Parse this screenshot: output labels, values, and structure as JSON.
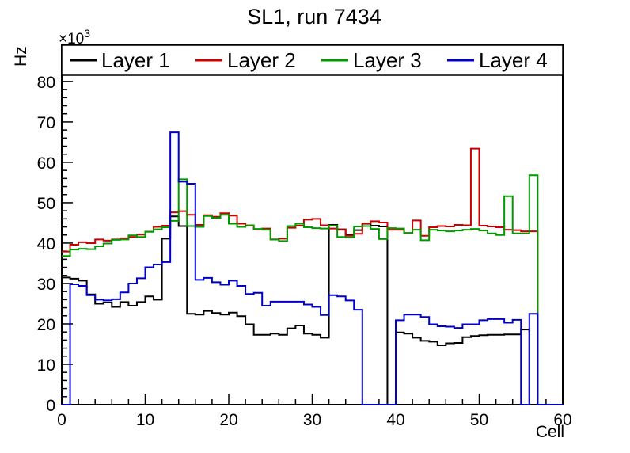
{
  "title": "SL1, run 7434",
  "y_axis": {
    "label": "Hz",
    "power_base": "×10",
    "power_exp": "3",
    "tick_labels": [
      "0",
      "10",
      "20",
      "30",
      "40",
      "50",
      "60",
      "70",
      "80"
    ]
  },
  "x_axis": {
    "label": "Cell",
    "tick_labels": [
      "0",
      "10",
      "20",
      "30",
      "40",
      "50",
      "60"
    ]
  },
  "legend": {
    "entries": [
      {
        "label": "Layer 1",
        "color": "#000000"
      },
      {
        "label": "Layer 2",
        "color": "#cc0000"
      },
      {
        "label": "Layer 3",
        "color": "#009900"
      },
      {
        "label": "Layer 4",
        "color": "#0000cc"
      }
    ]
  },
  "chart_data": {
    "type": "step-histogram",
    "title": "SL1, run 7434",
    "xlabel": "Cell",
    "ylabel": "Hz",
    "y_unit": "kHz (axis shows ×10³ Hz)",
    "x_min": 0,
    "x_max": 60,
    "bin_width": 1,
    "n_bins": 60,
    "ylim": [
      0,
      89
    ],
    "y_major_step": 10,
    "y_minor_step": 2,
    "x_major_step": 10,
    "x_minor_step": 2,
    "grid": false,
    "legend_position": "top-band",
    "series": [
      {
        "name": "Layer 1",
        "color": "#000000",
        "values": [
          31.5,
          31.2,
          30.7,
          27.3,
          25.0,
          25.3,
          24.2,
          25.4,
          24.5,
          25.4,
          26.8,
          26.0,
          41.1,
          46.6,
          44.2,
          22.5,
          22.3,
          23.2,
          22.7,
          22.3,
          22.8,
          21.9,
          19.9,
          17.3,
          17.3,
          17.6,
          17.3,
          18.9,
          19.6,
          17.6,
          17.3,
          16.6,
          44.5,
          43.4,
          42.0,
          43.2,
          44.8,
          44.3,
          44.1,
          0,
          17.9,
          17.6,
          16.6,
          15.8,
          15.6,
          14.7,
          15.2,
          15.3,
          16.7,
          17.0,
          17.2,
          17.3,
          17.3,
          17.4,
          17.4,
          18.6,
          0,
          0,
          0,
          0
        ]
      },
      {
        "name": "Layer 2",
        "color": "#cc0000",
        "values": [
          37.9,
          39.6,
          40.2,
          40.0,
          40.9,
          40.6,
          40.9,
          41.2,
          41.5,
          42.1,
          42.8,
          44.0,
          44.3,
          47.6,
          47.9,
          47.0,
          44.5,
          46.9,
          46.5,
          47.4,
          46.8,
          44.8,
          44.3,
          43.4,
          43.6,
          40.9,
          41.1,
          43.8,
          44.3,
          45.8,
          46.0,
          44.4,
          43.6,
          43.3,
          41.8,
          42.3,
          44.9,
          45.4,
          45.1,
          43.3,
          43.3,
          42.5,
          45.6,
          41.8,
          43.9,
          44.2,
          44.1,
          44.5,
          44.4,
          63.4,
          44.3,
          44.1,
          43.9,
          43.3,
          43.2,
          42.9,
          42.9,
          0,
          0,
          0
        ]
      },
      {
        "name": "Layer 3",
        "color": "#009900",
        "values": [
          36.8,
          38.4,
          38.6,
          38.5,
          39.2,
          39.9,
          40.8,
          40.9,
          41.9,
          41.5,
          42.8,
          43.4,
          43.9,
          45.5,
          55.8,
          44.2,
          44.0,
          46.7,
          46.2,
          47.0,
          44.8,
          44.0,
          44.4,
          43.5,
          43.3,
          40.9,
          40.5,
          44.2,
          44.8,
          43.9,
          43.7,
          43.6,
          44.3,
          41.5,
          41.4,
          44.1,
          44.2,
          43.5,
          41.0,
          43.7,
          43.6,
          42.5,
          43.3,
          40.7,
          43.3,
          43.1,
          42.9,
          43.1,
          43.3,
          43.5,
          43.1,
          42.4,
          42.0,
          51.6,
          42.4,
          42.4,
          56.8,
          0,
          0,
          0
        ]
      },
      {
        "name": "Layer 4",
        "color": "#0000cc",
        "values": [
          0,
          29.8,
          29.4,
          27.1,
          26.0,
          25.8,
          26.1,
          27.8,
          30.0,
          31.3,
          34.0,
          34.7,
          35.3,
          67.4,
          55.2,
          54.7,
          30.9,
          31.4,
          30.3,
          29.7,
          30.7,
          29.4,
          27.4,
          27.7,
          24.5,
          25.5,
          25.5,
          25.5,
          25.5,
          24.8,
          24.2,
          22.2,
          27.1,
          26.8,
          25.8,
          23.5,
          0,
          0,
          0,
          0,
          20.9,
          22.3,
          22.3,
          21.7,
          19.9,
          19.4,
          19.3,
          19.0,
          19.9,
          19.9,
          20.9,
          21.2,
          21.2,
          20.3,
          21.0,
          0,
          22.5,
          0,
          0,
          0
        ]
      }
    ]
  }
}
